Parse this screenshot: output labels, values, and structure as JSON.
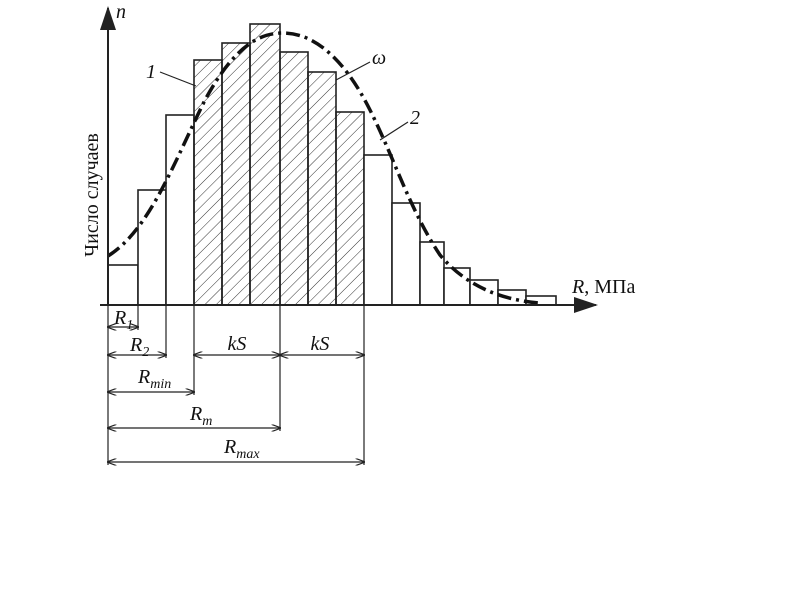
{
  "axes": {
    "y_symbol": "n",
    "x_label": {
      "symbol": "R",
      "unit": ", МПа"
    },
    "y_title": "Число случаев"
  },
  "curve_labels": [
    "1",
    "2"
  ],
  "area_label": "ω",
  "dimensions": [
    {
      "main": "R",
      "sub": "1"
    },
    {
      "main": "R",
      "sub": "2"
    },
    {
      "main": "kS"
    },
    {
      "main": "kS"
    },
    {
      "main": "R",
      "sub": "min"
    },
    {
      "main": "R",
      "sub": "m"
    },
    {
      "main": "R",
      "sub": "max"
    }
  ]
}
